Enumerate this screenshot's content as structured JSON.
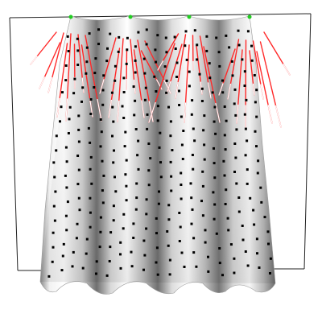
{
  "scene": {
    "description_visible_text": "",
    "colors": {
      "background": "#ffffff",
      "frame": "#222222",
      "pin": "#22cc22",
      "point": "#000000",
      "force_vector": "#ff2a2a",
      "force_vector_tip": "#ffffff"
    },
    "cloth": {
      "pin_count": 4,
      "grid_rows": 19,
      "grid_cols": 19,
      "fold_count": 4
    }
  }
}
